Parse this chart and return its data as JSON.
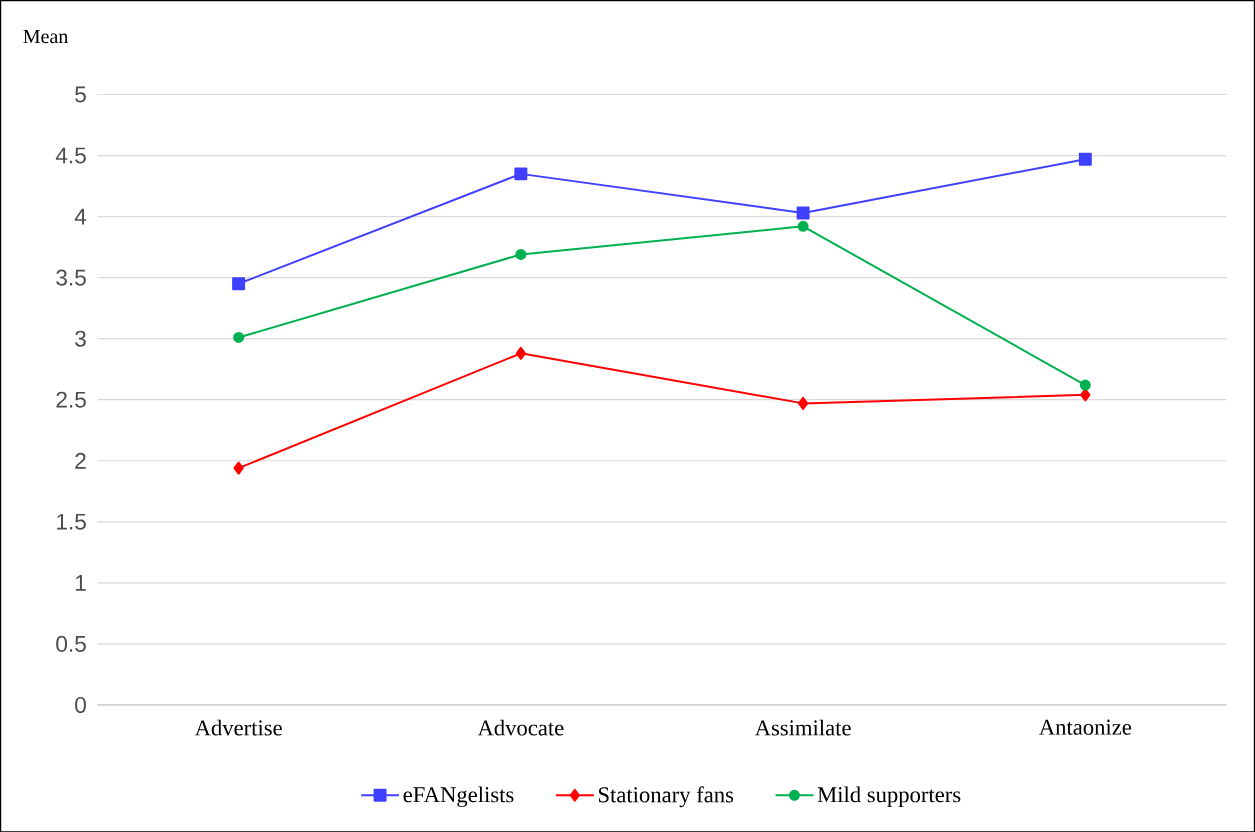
{
  "chart_data": {
    "type": "line",
    "ylabel": "Mean",
    "categories": [
      "Advertise",
      "Advocate",
      "Assimilate",
      "Antaonize"
    ],
    "series": [
      {
        "name": "eFANgelists",
        "color": "#4040ff",
        "marker": "square",
        "values": [
          3.45,
          4.35,
          4.03,
          4.47
        ]
      },
      {
        "name": "Stationary fans",
        "color": "#ff0000",
        "marker": "diamond",
        "values": [
          1.94,
          2.88,
          2.47,
          2.54
        ]
      },
      {
        "name": "Mild supporters",
        "color": "#00b050",
        "marker": "circle",
        "values": [
          3.01,
          3.69,
          3.92,
          2.62
        ]
      }
    ],
    "ylim": [
      0,
      5
    ],
    "yticks": [
      0,
      0.5,
      1,
      1.5,
      2,
      2.5,
      3,
      3.5,
      4,
      4.5,
      5
    ],
    "grid": "y",
    "legend": "bottom",
    "line_style": "solid"
  }
}
